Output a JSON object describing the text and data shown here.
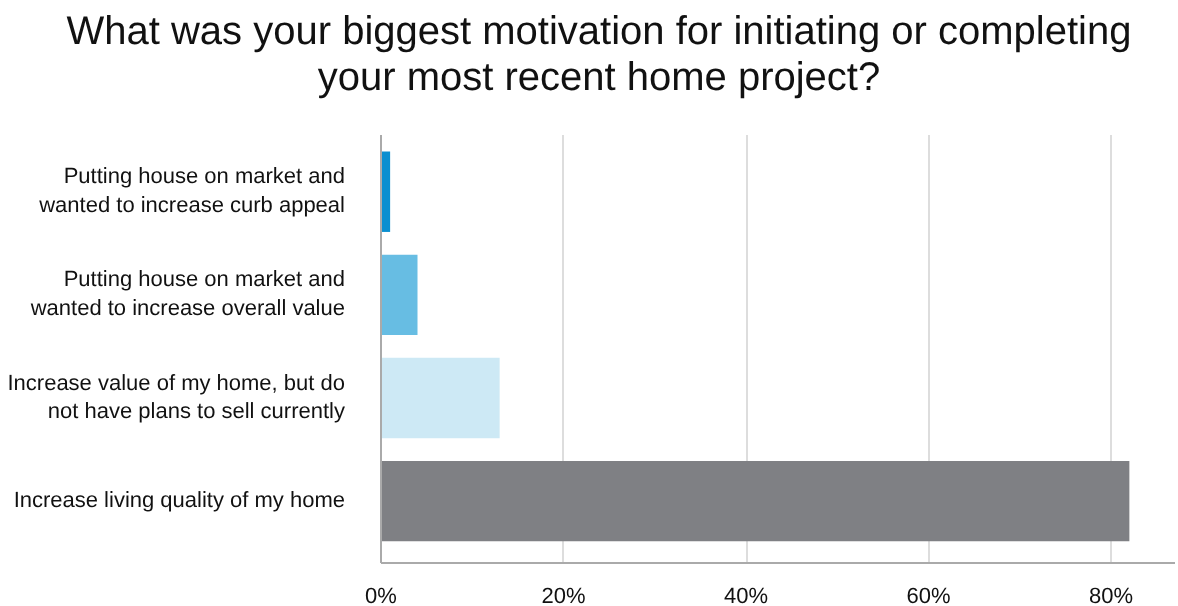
{
  "chart_data": {
    "type": "bar",
    "orientation": "horizontal",
    "title": "What was your biggest motivation for initiating or completing your most recent home project?",
    "categories": [
      "Putting house on market and\nwanted to increase curb appeal",
      "Putting house on market and\nwanted to increase overall value",
      "Increase value of my home, but do\nnot have plans to sell currently",
      "Increase living quality of my home"
    ],
    "values": [
      1,
      4,
      13,
      82
    ],
    "colors": [
      "#0a8fd0",
      "#67bde3",
      "#cde9f5",
      "#7f8084"
    ],
    "xlim": [
      0,
      87
    ],
    "xticks": [
      {
        "value": 0,
        "label": "0%"
      },
      {
        "value": 20,
        "label": "20%"
      },
      {
        "value": 40,
        "label": "40%"
      },
      {
        "value": 60,
        "label": "60%"
      },
      {
        "value": 80,
        "label": "80%"
      }
    ],
    "grid": "x"
  }
}
